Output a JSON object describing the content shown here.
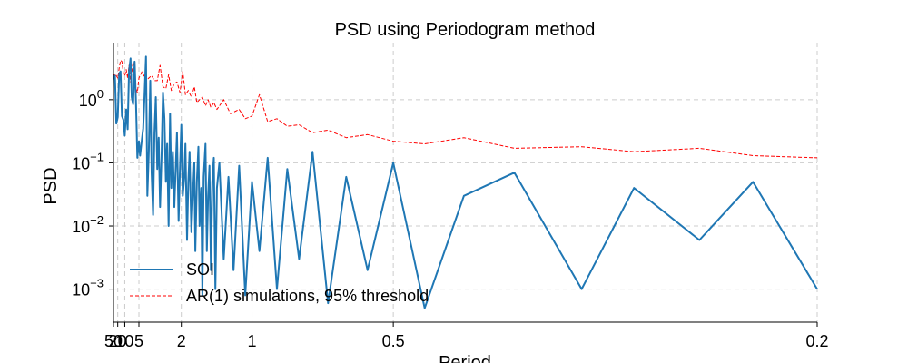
{
  "chart_data": {
    "type": "line",
    "title": "PSD using Periodogram method",
    "xlabel": "Period",
    "ylabel": "PSD",
    "x_scale": "reciprocal",
    "y_scale": "log",
    "xlim": [
      50,
      0.2
    ],
    "ylim": [
      0.0003,
      8
    ],
    "grid": true,
    "legend_position": "bottom-left",
    "x_ticks": [
      "50",
      "20",
      "10",
      "5",
      "2",
      "1",
      "0.5",
      "0.2"
    ],
    "y_ticks": [
      {
        "base": "10",
        "exp": "0"
      },
      {
        "base": "10",
        "exp": "−1"
      },
      {
        "base": "10",
        "exp": "−2"
      },
      {
        "base": "10",
        "exp": "−3"
      }
    ],
    "series": [
      {
        "name": "SOI",
        "color": "#1f77b4",
        "style": "solid",
        "x": [
          50,
          33,
          25,
          20,
          16.6,
          14.2,
          12.5,
          11.1,
          10,
          9.1,
          8.3,
          7.7,
          7.1,
          6.7,
          6.3,
          5.9,
          5.6,
          5.3,
          5.0,
          4.8,
          4.5,
          4.35,
          4.17,
          4.0,
          3.85,
          3.7,
          3.57,
          3.45,
          3.33,
          3.23,
          3.13,
          3.03,
          2.94,
          2.86,
          2.78,
          2.7,
          2.63,
          2.56,
          2.5,
          2.44,
          2.38,
          2.33,
          2.27,
          2.22,
          2.17,
          2.13,
          2.08,
          2.04,
          2.0,
          1.96,
          1.92,
          1.89,
          1.85,
          1.82,
          1.79,
          1.75,
          1.72,
          1.69,
          1.67,
          1.64,
          1.61,
          1.59,
          1.56,
          1.54,
          1.52,
          1.49,
          1.47,
          1.45,
          1.43,
          1.41,
          1.39,
          1.37,
          1.35,
          1.33,
          1.3,
          1.25,
          1.2,
          1.15,
          1.1,
          1.05,
          1.0,
          0.95,
          0.9,
          0.85,
          0.8,
          0.75,
          0.7,
          0.65,
          0.6,
          0.55,
          0.5,
          0.45,
          0.4,
          0.35,
          0.3,
          0.27,
          0.24,
          0.22,
          0.2
        ],
        "y": [
          2.1,
          2.4,
          0.42,
          0.53,
          2.6,
          2.8,
          0.55,
          0.48,
          0.27,
          0.7,
          0.34,
          2.8,
          4.5,
          1.1,
          0.85,
          4.0,
          1.0,
          0.12,
          0.22,
          0.13,
          0.25,
          0.35,
          1.2,
          4.8,
          0.03,
          0.15,
          2.0,
          0.07,
          0.015,
          0.3,
          1.1,
          0.08,
          0.25,
          0.02,
          0.12,
          1.3,
          0.5,
          0.05,
          0.2,
          0.01,
          0.6,
          0.04,
          0.15,
          0.02,
          0.09,
          0.3,
          0.012,
          0.08,
          0.4,
          0.03,
          0.06,
          0.2,
          0.006,
          0.05,
          0.15,
          0.008,
          0.03,
          0.1,
          0.004,
          0.05,
          0.18,
          0.01,
          0.04,
          0.0008,
          0.06,
          0.2,
          0.004,
          0.03,
          0.09,
          0.002,
          0.05,
          0.12,
          0.001,
          0.04,
          0.1,
          0.003,
          0.06,
          0.002,
          0.09,
          0.0008,
          0.05,
          0.004,
          0.12,
          0.001,
          0.08,
          0.003,
          0.15,
          0.0006,
          0.06,
          0.002,
          0.1,
          0.0005,
          0.03,
          0.07,
          0.001,
          0.04,
          0.006,
          0.05,
          0.001
        ]
      },
      {
        "name": "AR(1) simulations, 95% threshold",
        "color": "#ff0000",
        "style": "dashed",
        "x": [
          50,
          33,
          25,
          20,
          16.6,
          14.2,
          12.5,
          11.1,
          10,
          9.1,
          8.3,
          7.7,
          7.1,
          6.7,
          6.3,
          5.9,
          5.6,
          5.3,
          5.0,
          4.5,
          4.0,
          3.7,
          3.45,
          3.23,
          3.03,
          2.86,
          2.7,
          2.56,
          2.44,
          2.33,
          2.22,
          2.13,
          2.04,
          1.96,
          1.89,
          1.82,
          1.75,
          1.69,
          1.64,
          1.59,
          1.54,
          1.49,
          1.45,
          1.41,
          1.37,
          1.33,
          1.25,
          1.18,
          1.1,
          1.05,
          1.0,
          0.95,
          0.9,
          0.85,
          0.8,
          0.75,
          0.7,
          0.65,
          0.6,
          0.55,
          0.5,
          0.45,
          0.4,
          0.35,
          0.3,
          0.27,
          0.24,
          0.22,
          0.2
        ],
        "y": [
          2.3,
          2.6,
          2.4,
          2.2,
          3.2,
          4.2,
          4.0,
          2.6,
          2.4,
          3.0,
          2.2,
          3.5,
          1.9,
          2.6,
          4.0,
          2.4,
          1.5,
          1.3,
          2.2,
          2.8,
          2.0,
          2.2,
          2.4,
          2.0,
          2.0,
          3.5,
          1.6,
          1.5,
          2.5,
          1.4,
          1.8,
          1.9,
          1.3,
          2.8,
          1.2,
          1.4,
          1.1,
          1.6,
          0.9,
          1.0,
          1.1,
          0.8,
          1.0,
          0.75,
          0.9,
          0.7,
          1.0,
          0.6,
          0.7,
          0.5,
          0.55,
          1.2,
          0.45,
          0.5,
          0.38,
          0.4,
          0.3,
          0.33,
          0.25,
          0.28,
          0.22,
          0.2,
          0.25,
          0.17,
          0.18,
          0.15,
          0.17,
          0.13,
          0.12
        ]
      }
    ]
  }
}
